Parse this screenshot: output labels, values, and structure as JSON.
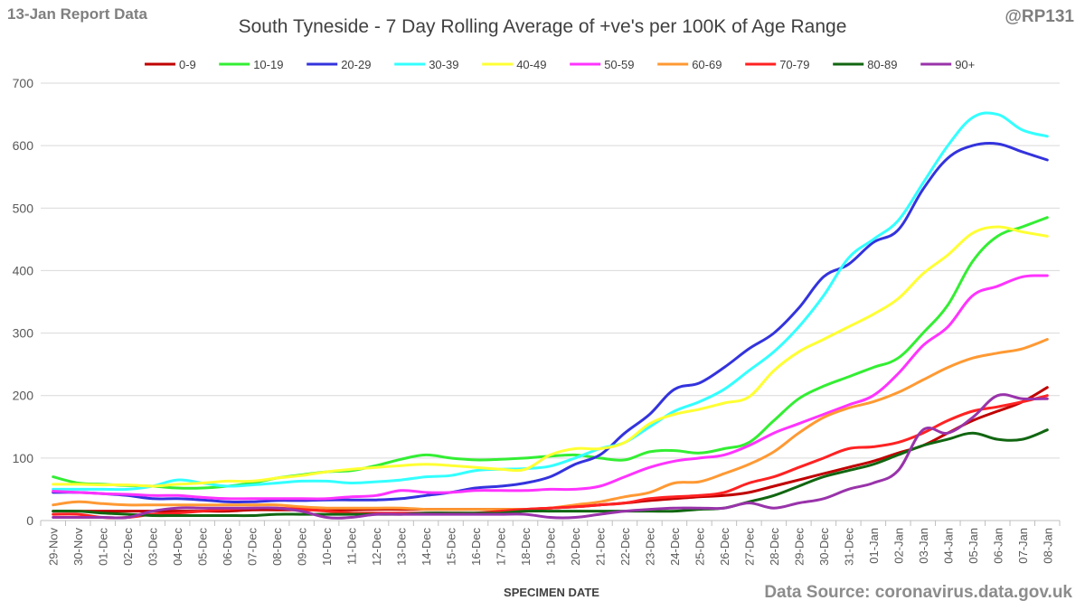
{
  "header": {
    "report_label": "13-Jan Report Data",
    "handle": "@RP131",
    "source": "Data Source: coronavirus.data.gov.uk"
  },
  "chart_data": {
    "type": "line",
    "title": "South Tyneside - 7 Day Rolling Average of +ve's per 100K of Age Range",
    "xlabel": "SPECIMEN DATE",
    "ylabel": "",
    "ylim": [
      0,
      700
    ],
    "yticks": [
      0,
      100,
      200,
      300,
      400,
      500,
      600,
      700
    ],
    "grid": "horizontal",
    "legend_position": "top",
    "categories": [
      "29-Nov",
      "30-Nov",
      "01-Dec",
      "02-Dec",
      "03-Dec",
      "04-Dec",
      "05-Dec",
      "06-Dec",
      "07-Dec",
      "08-Dec",
      "09-Dec",
      "10-Dec",
      "11-Dec",
      "12-Dec",
      "13-Dec",
      "14-Dec",
      "15-Dec",
      "16-Dec",
      "17-Dec",
      "18-Dec",
      "19-Dec",
      "20-Dec",
      "21-Dec",
      "22-Dec",
      "23-Dec",
      "24-Dec",
      "25-Dec",
      "26-Dec",
      "27-Dec",
      "28-Dec",
      "29-Dec",
      "30-Dec",
      "31-Dec",
      "01-Jan",
      "02-Jan",
      "03-Jan",
      "04-Jan",
      "05-Jan",
      "06-Jan",
      "07-Jan",
      "08-Jan"
    ],
    "series": [
      {
        "name": "0-9",
        "color": "#c00000",
        "values": [
          15,
          15,
          15,
          15,
          15,
          15,
          15,
          15,
          17,
          17,
          17,
          17,
          17,
          18,
          18,
          18,
          18,
          18,
          18,
          18,
          20,
          22,
          25,
          28,
          32,
          35,
          38,
          40,
          45,
          55,
          65,
          75,
          85,
          95,
          108,
          120,
          140,
          160,
          175,
          190,
          213
        ]
      },
      {
        "name": "10-19",
        "color": "#33ee33",
        "values": [
          70,
          60,
          58,
          56,
          55,
          52,
          52,
          55,
          60,
          68,
          73,
          78,
          80,
          88,
          98,
          105,
          100,
          97,
          98,
          100,
          103,
          105,
          100,
          97,
          110,
          112,
          108,
          115,
          125,
          160,
          195,
          215,
          230,
          245,
          260,
          300,
          345,
          415,
          455,
          470,
          485
        ]
      },
      {
        "name": "20-29",
        "color": "#3333dd",
        "values": [
          45,
          45,
          43,
          40,
          35,
          35,
          33,
          30,
          30,
          32,
          32,
          33,
          33,
          33,
          35,
          40,
          45,
          52,
          55,
          60,
          70,
          90,
          105,
          140,
          170,
          210,
          220,
          245,
          275,
          300,
          340,
          390,
          410,
          445,
          465,
          530,
          580,
          600,
          603,
          590,
          577
        ]
      },
      {
        "name": "30-39",
        "color": "#33ffff",
        "values": [
          50,
          50,
          50,
          50,
          55,
          65,
          60,
          55,
          57,
          60,
          63,
          63,
          60,
          62,
          65,
          70,
          72,
          80,
          82,
          83,
          87,
          100,
          115,
          125,
          150,
          175,
          190,
          210,
          240,
          270,
          310,
          360,
          420,
          450,
          480,
          540,
          600,
          645,
          650,
          625,
          615
        ]
      },
      {
        "name": "40-49",
        "color": "#ffff33",
        "values": [
          58,
          58,
          57,
          57,
          55,
          58,
          60,
          63,
          63,
          68,
          72,
          78,
          82,
          85,
          88,
          90,
          88,
          85,
          82,
          82,
          105,
          115,
          115,
          125,
          155,
          170,
          178,
          188,
          198,
          240,
          270,
          290,
          310,
          330,
          355,
          395,
          425,
          460,
          470,
          462,
          455
        ]
      },
      {
        "name": "50-59",
        "color": "#ff33ff",
        "values": [
          47,
          45,
          43,
          42,
          40,
          40,
          37,
          35,
          35,
          35,
          35,
          35,
          38,
          40,
          48,
          45,
          45,
          48,
          48,
          48,
          50,
          50,
          55,
          70,
          85,
          95,
          100,
          105,
          120,
          140,
          155,
          170,
          185,
          200,
          235,
          280,
          310,
          360,
          375,
          390,
          392
        ]
      },
      {
        "name": "60-69",
        "color": "#ff9933",
        "values": [
          25,
          30,
          27,
          25,
          25,
          25,
          25,
          25,
          25,
          25,
          22,
          20,
          20,
          20,
          20,
          18,
          18,
          18,
          18,
          18,
          20,
          25,
          30,
          38,
          45,
          60,
          62,
          75,
          90,
          110,
          140,
          165,
          180,
          190,
          205,
          225,
          245,
          260,
          268,
          275,
          290
        ]
      },
      {
        "name": "70-79",
        "color": "#ff2222",
        "values": [
          10,
          10,
          5,
          5,
          10,
          12,
          15,
          18,
          20,
          20,
          18,
          15,
          12,
          12,
          12,
          12,
          12,
          12,
          15,
          18,
          20,
          22,
          25,
          28,
          35,
          38,
          40,
          45,
          60,
          70,
          85,
          100,
          115,
          118,
          125,
          140,
          160,
          175,
          182,
          190,
          200
        ]
      },
      {
        "name": "80-89",
        "color": "#116611",
        "values": [
          15,
          15,
          12,
          10,
          8,
          8,
          8,
          8,
          8,
          10,
          10,
          10,
          10,
          10,
          10,
          12,
          12,
          12,
          12,
          15,
          15,
          15,
          15,
          15,
          15,
          15,
          18,
          20,
          30,
          40,
          55,
          70,
          80,
          90,
          105,
          120,
          130,
          140,
          130,
          130,
          145
        ]
      },
      {
        "name": "90+",
        "color": "#9933aa",
        "values": [
          5,
          5,
          5,
          5,
          15,
          20,
          20,
          20,
          20,
          20,
          15,
          5,
          5,
          10,
          10,
          10,
          10,
          10,
          10,
          10,
          5,
          5,
          10,
          15,
          18,
          20,
          20,
          20,
          28,
          20,
          28,
          35,
          50,
          60,
          80,
          145,
          140,
          165,
          200,
          195,
          195
        ]
      }
    ]
  }
}
